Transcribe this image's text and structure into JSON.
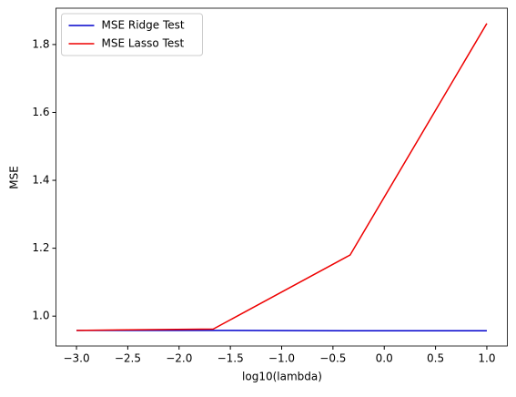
{
  "chart_data": {
    "type": "line",
    "xlabel": "log10(lambda)",
    "ylabel": "MSE",
    "x": [
      -3,
      -1.667,
      -0.333,
      1
    ],
    "series": [
      {
        "name": "MSE Ridge Test",
        "color": "#0000cc",
        "values": [
          0.958,
          0.958,
          0.957,
          0.957
        ]
      },
      {
        "name": "MSE Lasso Test",
        "color": "#ee0000",
        "values": [
          0.958,
          0.962,
          1.18,
          1.862
        ]
      }
    ],
    "xlim": [
      -3.2,
      1.2
    ],
    "xticks": [
      {
        "value": -3,
        "label": "−3.0"
      },
      {
        "value": -2.5,
        "label": "−2.5"
      },
      {
        "value": -2,
        "label": "−2.0"
      },
      {
        "value": -1.5,
        "label": "−1.5"
      },
      {
        "value": -1,
        "label": "−1.0"
      },
      {
        "value": -0.5,
        "label": "−0.5"
      },
      {
        "value": 0,
        "label": "0.0"
      },
      0.5,
      {
        "value": 1,
        "label": "1.0"
      }
    ],
    "ylim": [
      0.912,
      1.907
    ],
    "yticks": [
      {
        "value": 1,
        "label": "1.0"
      },
      1.2,
      1.4,
      1.6,
      1.8
    ],
    "legend": "upper left"
  }
}
